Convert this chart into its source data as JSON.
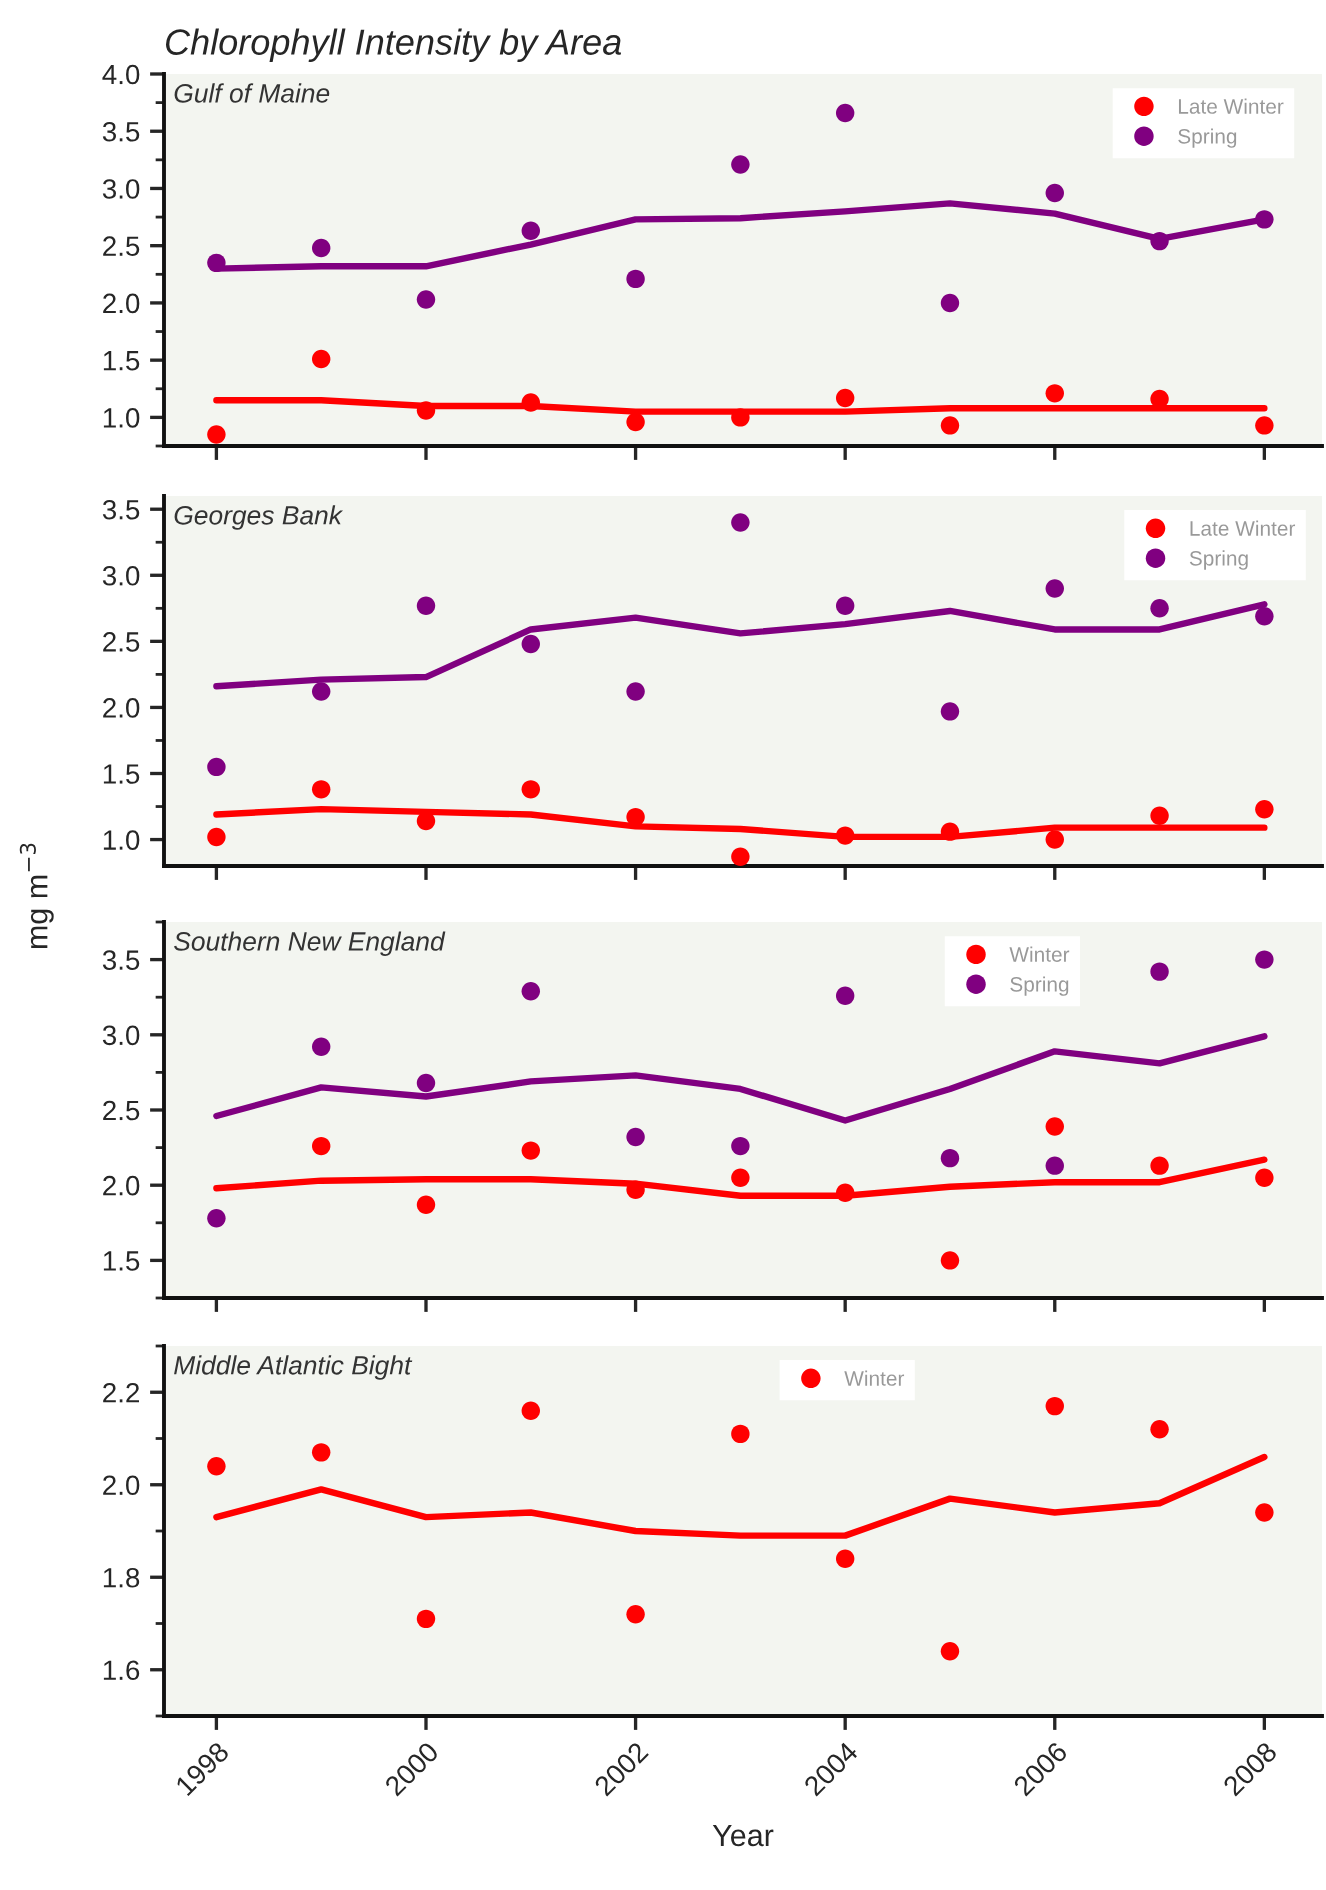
{
  "chart_data": [
    {
      "type": "scatter",
      "title": "Chlorophyll Intensity by Area",
      "annotations": [
        "Gulf of Maine"
      ],
      "x": [
        1998,
        1999,
        2000,
        2001,
        2002,
        2003,
        2004,
        2005,
        2006,
        2007,
        2008
      ],
      "xlim": [
        1997.5,
        2008.55
      ],
      "xticks": [
        1998,
        2000,
        2002,
        2004,
        2006,
        2008
      ],
      "ylim": [
        0.75,
        4.0
      ],
      "yticks": [
        {
          "value": 1,
          "label": "1.0"
        },
        1.5,
        {
          "value": 2,
          "label": "2.0"
        },
        2.5,
        {
          "value": 3,
          "label": "3.0"
        },
        3.5,
        {
          "value": 4,
          "label": "4.0"
        }
      ],
      "tick_labels": "y",
      "legend": "top right",
      "line_style": "solid",
      "series": [
        {
          "name": "Late Winter",
          "marker": "circle",
          "color": "#ff0000",
          "values": [
            0.85,
            1.51,
            1.06,
            1.13,
            0.96,
            1.0,
            1.17,
            0.93,
            1.21,
            1.16,
            0.93
          ]
        },
        {
          "name": "Spring",
          "marker": "circle",
          "color": "#800080",
          "values": [
            2.35,
            2.48,
            2.03,
            2.63,
            2.21,
            3.21,
            3.66,
            2.0,
            2.96,
            2.54,
            2.73
          ]
        },
        {
          "type": "line",
          "color": "#ff0000",
          "values": [
            1.15,
            1.15,
            1.1,
            1.1,
            1.05,
            1.05,
            1.05,
            1.08,
            1.08,
            1.08,
            1.08
          ]
        },
        {
          "type": "line",
          "color": "#800080",
          "values": [
            2.3,
            2.32,
            2.32,
            2.51,
            2.73,
            2.74,
            2.8,
            2.87,
            2.78,
            2.56,
            2.73
          ]
        }
      ]
    },
    {
      "type": "scatter",
      "annotations": [
        "Georges Bank"
      ],
      "ylabel": "mg m$^{−3}$",
      "x": [
        1998,
        1999,
        2000,
        2001,
        2002,
        2003,
        2004,
        2005,
        2006,
        2007,
        2008
      ],
      "xlim": [
        1997.5,
        2008.55
      ],
      "xticks": [
        1998,
        2000,
        2002,
        2004,
        2006,
        2008
      ],
      "ylim": [
        0.8,
        3.6
      ],
      "yticks": [
        {
          "value": 1,
          "label": "1.0"
        },
        1.5,
        {
          "value": 2,
          "label": "2.0"
        },
        2.5,
        {
          "value": 3,
          "label": "3.0"
        },
        3.5
      ],
      "tick_labels": "y",
      "legend": "top right",
      "line_style": "solid",
      "series": [
        {
          "name": "Late Winter",
          "marker": "circle",
          "color": "#ff0000",
          "values": [
            1.02,
            1.38,
            1.14,
            1.38,
            1.17,
            0.87,
            1.03,
            1.06,
            1.0,
            1.18,
            1.23
          ]
        },
        {
          "name": "Spring",
          "marker": "circle",
          "color": "#800080",
          "values": [
            1.55,
            2.12,
            2.77,
            2.48,
            2.12,
            3.4,
            2.77,
            1.97,
            2.9,
            2.75,
            2.69
          ]
        },
        {
          "type": "line",
          "color": "#ff0000",
          "values": [
            1.19,
            1.23,
            1.21,
            1.19,
            1.1,
            1.08,
            1.02,
            1.02,
            1.09,
            1.09,
            1.09
          ]
        },
        {
          "type": "line",
          "color": "#800080",
          "values": [
            2.16,
            2.21,
            2.23,
            2.59,
            2.68,
            2.56,
            2.63,
            2.73,
            2.59,
            2.59,
            2.78
          ]
        }
      ]
    },
    {
      "type": "scatter",
      "annotations": [
        "Southern New England"
      ],
      "x": [
        1998,
        1999,
        2000,
        2001,
        2002,
        2003,
        2004,
        2005,
        2006,
        2007,
        2008
      ],
      "xlim": [
        1997.5,
        2008.55
      ],
      "xticks": [
        1998,
        2000,
        2002,
        2004,
        2006,
        2008
      ],
      "ylim": [
        1.25,
        3.75
      ],
      "yticks": [
        1.5,
        {
          "value": 2,
          "label": "2.0"
        },
        2.5,
        {
          "value": 3,
          "label": "3.0"
        },
        3.5
      ],
      "tick_labels": "y",
      "legend": "top right",
      "line_style": "solid",
      "series": [
        {
          "name": "Winter",
          "marker": "circle",
          "color": "#ff0000",
          "values": [
            null,
            2.26,
            1.87,
            2.23,
            1.97,
            2.05,
            1.95,
            1.5,
            2.39,
            2.13,
            2.05
          ]
        },
        {
          "name": "Spring",
          "marker": "circle",
          "color": "#800080",
          "values": [
            1.78,
            2.92,
            2.68,
            3.29,
            2.32,
            2.26,
            3.26,
            2.18,
            2.13,
            3.42,
            3.5
          ]
        },
        {
          "type": "line",
          "color": "#ff0000",
          "values": [
            1.98,
            2.03,
            2.04,
            2.04,
            2.01,
            1.93,
            1.93,
            1.99,
            2.02,
            2.02,
            2.17
          ]
        },
        {
          "type": "line",
          "color": "#800080",
          "values": [
            2.46,
            2.65,
            2.59,
            2.69,
            2.73,
            2.64,
            2.43,
            2.64,
            2.89,
            2.81,
            2.99
          ]
        }
      ]
    },
    {
      "type": "scatter",
      "annotations": [
        "Middle Atlantic Bight"
      ],
      "xlabel": "Year",
      "x": [
        1998,
        1999,
        2000,
        2001,
        2002,
        2003,
        2004,
        2005,
        2006,
        2007,
        2008
      ],
      "xlim": [
        1997.5,
        2008.55
      ],
      "xticks": [
        1998,
        2000,
        2002,
        2004,
        2006,
        2008
      ],
      "ylim": [
        1.5,
        2.3
      ],
      "yticks": [
        1.6,
        1.8,
        {
          "value": 2,
          "label": "2.0"
        },
        2.2
      ],
      "legend": "top",
      "line_style": "solid",
      "series": [
        {
          "name": "Winter",
          "marker": "circle",
          "color": "#ff0000",
          "values": [
            2.04,
            2.07,
            1.71,
            2.16,
            1.72,
            2.11,
            1.84,
            1.64,
            2.17,
            2.12,
            1.94
          ]
        },
        {
          "type": "line",
          "color": "#ff0000",
          "values": [
            1.93,
            1.99,
            1.93,
            1.94,
            1.9,
            1.89,
            1.89,
            1.97,
            1.94,
            1.96,
            2.06
          ]
        }
      ]
    }
  ]
}
